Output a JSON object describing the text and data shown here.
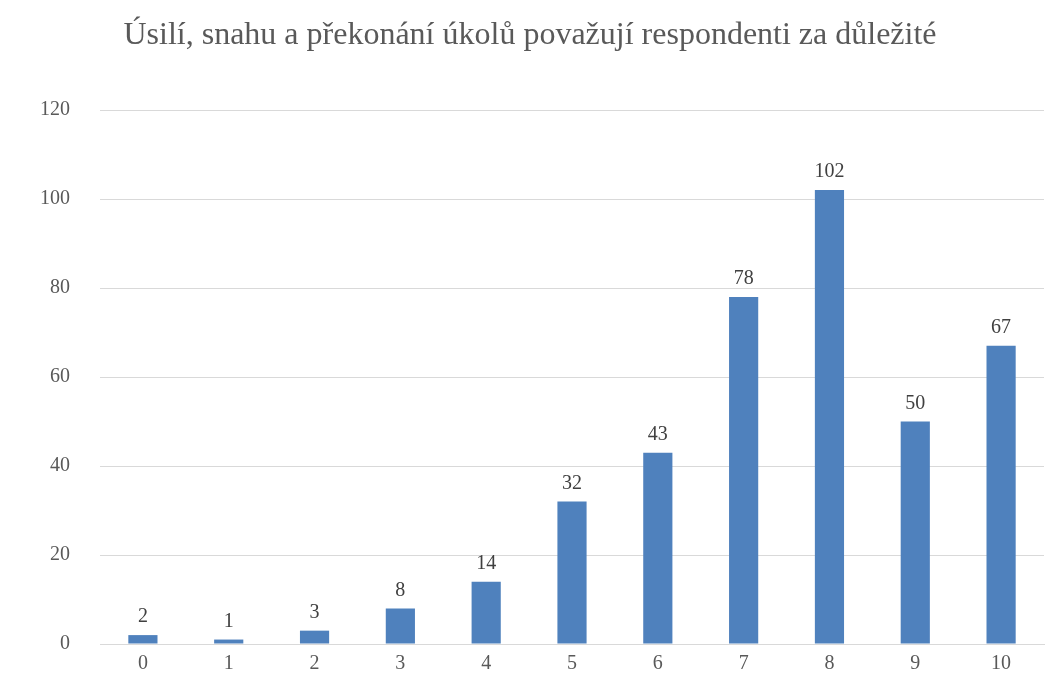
{
  "chart_data": {
    "type": "bar",
    "title": "Úsilí, snahu a překonání úkolů považují respondenti za důležité",
    "categories": [
      "0",
      "1",
      "2",
      "3",
      "4",
      "5",
      "6",
      "7",
      "8",
      "9",
      "10"
    ],
    "values": [
      2,
      1,
      3,
      8,
      14,
      32,
      43,
      78,
      102,
      50,
      67
    ],
    "color": "#4f81bd",
    "ylim": [
      0,
      120
    ],
    "yticks": [
      0,
      20,
      40,
      60,
      80,
      100,
      120
    ],
    "grid": "y",
    "data_labels": true,
    "legend": false
  }
}
